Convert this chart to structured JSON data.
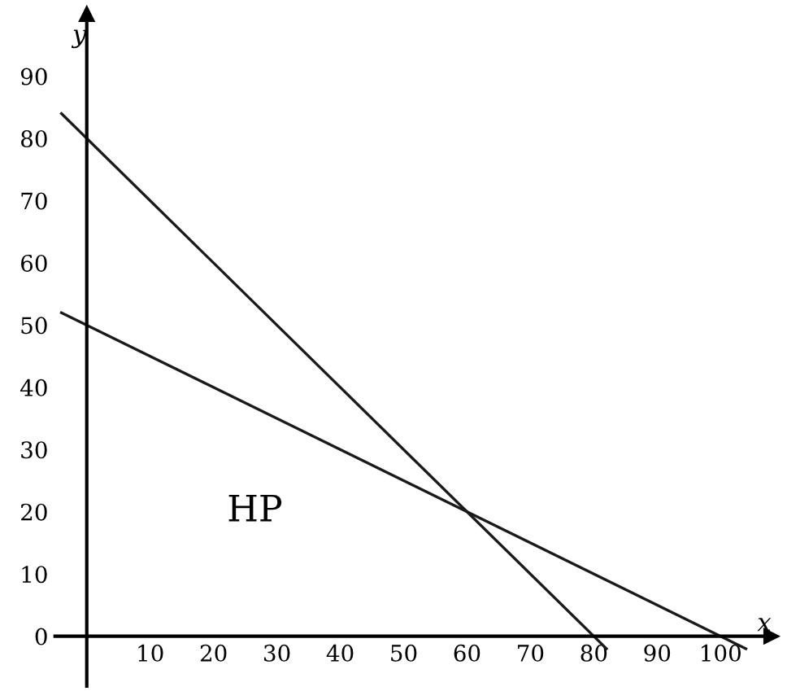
{
  "chart_data": {
    "type": "line",
    "xlabel": "x",
    "ylabel": "y",
    "series": [
      {
        "color": "#1a1a1a",
        "x": [
          -4,
          82
        ],
        "values": [
          84,
          -2
        ]
      },
      {
        "color": "#1a1a1a",
        "x": [
          -4,
          104
        ],
        "values": [
          52,
          -2
        ]
      }
    ],
    "annotations": [
      "HP"
    ],
    "xlim": [
      -5,
      108
    ],
    "ylim": [
      -8,
      100
    ],
    "xticks": [
      10,
      20,
      30,
      40,
      50,
      60,
      70,
      80,
      90,
      100
    ],
    "yticks": [
      0,
      10,
      20,
      30,
      40,
      50,
      60,
      70,
      80,
      90
    ],
    "grid": false,
    "legend": false,
    "marker": "none",
    "line_style": "solid"
  }
}
